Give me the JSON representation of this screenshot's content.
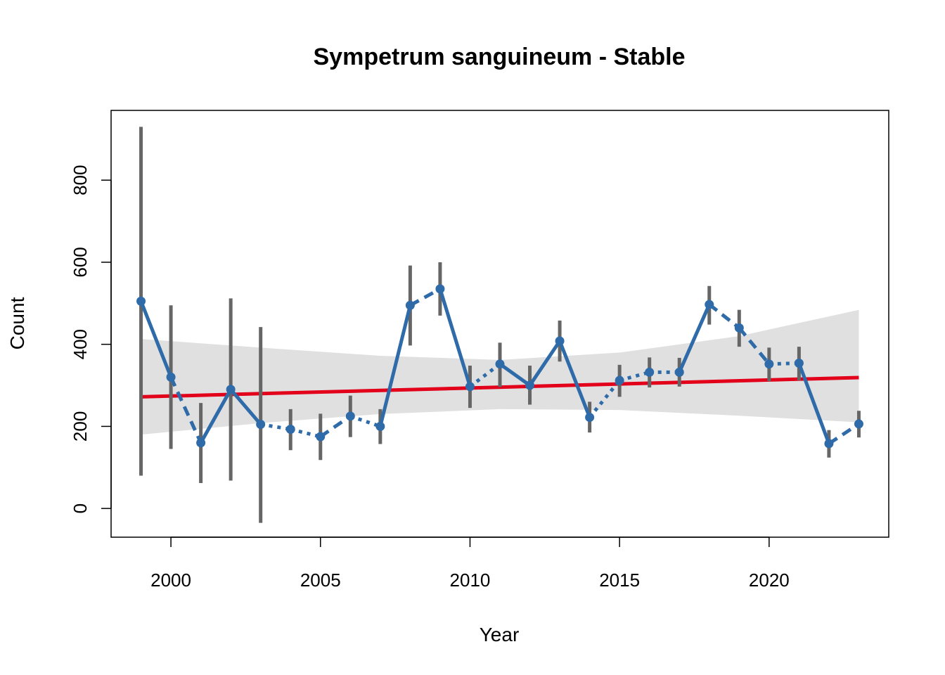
{
  "chart_data": {
    "type": "line",
    "title": "Sympetrum sanguineum - Stable",
    "xlabel": "Year",
    "ylabel": "Count",
    "xlim": [
      1998,
      2024
    ],
    "ylim": [
      -70,
      970
    ],
    "xticks": [
      2000,
      2005,
      2010,
      2015,
      2020
    ],
    "yticks": [
      0,
      200,
      400,
      600,
      800
    ],
    "grid": false,
    "colors": {
      "points": "#2e6ba8",
      "error_bars": "#666666",
      "trend": "#e3001b",
      "ribbon": "#e0e0e0"
    },
    "series": [
      {
        "x": [
          1999,
          2000,
          2001,
          2002,
          2003,
          2004,
          2005,
          2006,
          2007,
          2008,
          2009,
          2010,
          2011,
          2012,
          2013,
          2014,
          2015,
          2016,
          2017,
          2018,
          2019,
          2020,
          2021,
          2022,
          2023
        ],
        "values": [
          505,
          320,
          160,
          290,
          205,
          193,
          175,
          225,
          200,
          495,
          535,
          297,
          352,
          300,
          408,
          222,
          312,
          332,
          332,
          497,
          440,
          352,
          354,
          158,
          206
        ],
        "lower": [
          80,
          145,
          62,
          68,
          -35,
          142,
          118,
          174,
          157,
          397,
          470,
          245,
          296,
          253,
          358,
          185,
          272,
          295,
          297,
          448,
          394,
          310,
          312,
          124,
          173
        ],
        "upper": [
          930,
          495,
          257,
          512,
          442,
          242,
          231,
          275,
          242,
          592,
          600,
          348,
          404,
          348,
          458,
          260,
          350,
          368,
          367,
          542,
          484,
          392,
          394,
          191,
          238
        ],
        "segment_styles": [
          "solid",
          "dashed",
          "solid",
          "solid",
          "dotted",
          "dotted",
          "dashed",
          "dotted",
          "solid",
          "dashed",
          "solid",
          "dotted",
          "solid",
          "solid",
          "solid",
          "dotted",
          "dotted",
          "dotted",
          "solid",
          "dashed",
          "dashed",
          "dotted",
          "solid",
          "dashed"
        ]
      }
    ],
    "trend": {
      "x": [
        1999,
        2023
      ],
      "y": [
        272,
        319
      ]
    },
    "ribbon": {
      "x": [
        1999,
        2003,
        2007,
        2011,
        2015,
        2019,
        2023
      ],
      "lower": [
        180,
        208,
        230,
        242,
        240,
        226,
        210
      ],
      "upper": [
        413,
        392,
        372,
        362,
        380,
        420,
        484
      ]
    }
  }
}
